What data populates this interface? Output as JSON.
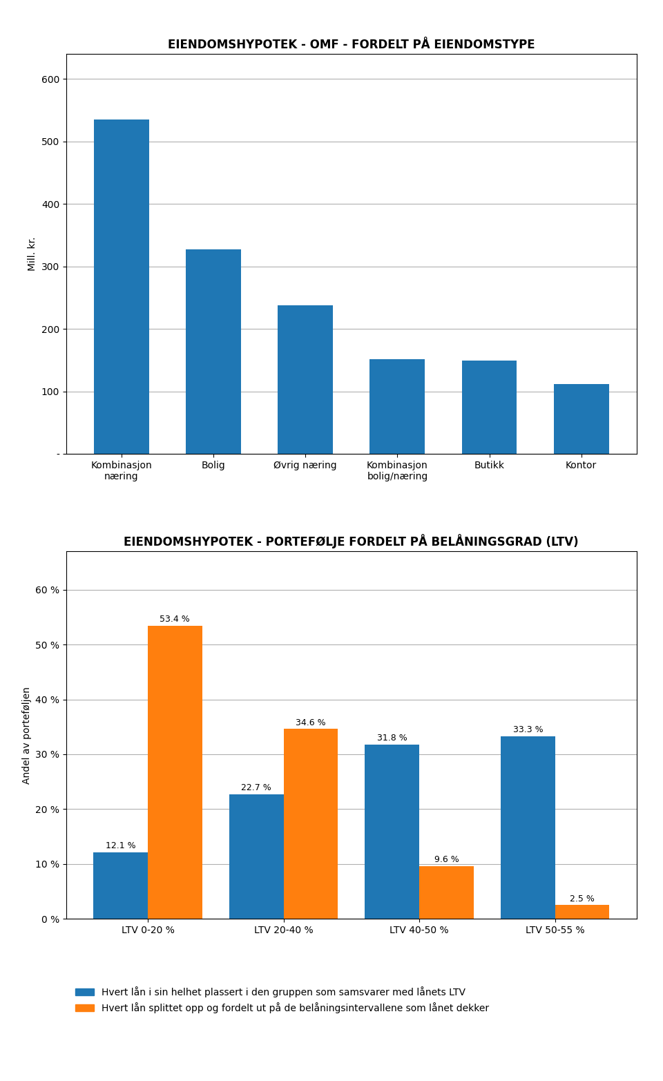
{
  "chart_data": [
    {
      "type": "bar",
      "title": "EIENDOMSHYPOTEK - OMF - FORDELT PÅ EIENDOMSTYPE",
      "categories": [
        "Kombinasjon\nnæring",
        "Bolig",
        "Øvrig næring",
        "Kombinasjon\nbolig/næring",
        "Butikk",
        "Kontor"
      ],
      "values": [
        535,
        328,
        238,
        152,
        149,
        112
      ],
      "y_label": "Mill. kr.",
      "ylim": [
        0,
        640
      ],
      "yticks": [
        {
          "value": 0,
          "label": "-"
        },
        100,
        200,
        300,
        400,
        500,
        600
      ],
      "grid": true
    },
    {
      "type": "bar",
      "title": "EIENDOMSHYPOTEK - PORTEFØLJE FORDELT PÅ BELÅNINGSGRAD (LTV)",
      "categories": [
        "LTV 0-20 %",
        "LTV 20-40 %",
        "LTV 40-50 %",
        "LTV 50-55 %"
      ],
      "series": [
        {
          "name": "Hvert lån i sin helhet plassert i den gruppen som samsvarer med lånets LTV",
          "values": [
            12.1,
            22.7,
            31.8,
            33.3
          ],
          "value_labels": [
            "12.1 %",
            "22.7 %",
            "31.8 %",
            "33.3 %"
          ]
        },
        {
          "name": "Hvert lån splittet opp og fordelt ut på de belåningsintervallene som lånet dekker",
          "values": [
            53.4,
            34.6,
            9.6,
            2.5
          ],
          "value_labels": [
            "53.4 %",
            "34.6 %",
            "9.6 %",
            "2.5 %"
          ]
        }
      ],
      "y_label": "Andel av porteføljen",
      "ylim": [
        0,
        67
      ],
      "yticks": [
        {
          "value": 0,
          "label": "0 %"
        },
        {
          "value": 10,
          "label": "10 %"
        },
        {
          "value": 20,
          "label": "20 %"
        },
        {
          "value": 30,
          "label": "30 %"
        },
        {
          "value": 40,
          "label": "40 %"
        },
        {
          "value": 50,
          "label": "50 %"
        },
        {
          "value": 60,
          "label": "60 %"
        }
      ],
      "grid": true,
      "data_labels": true,
      "legend": "lower left"
    }
  ]
}
